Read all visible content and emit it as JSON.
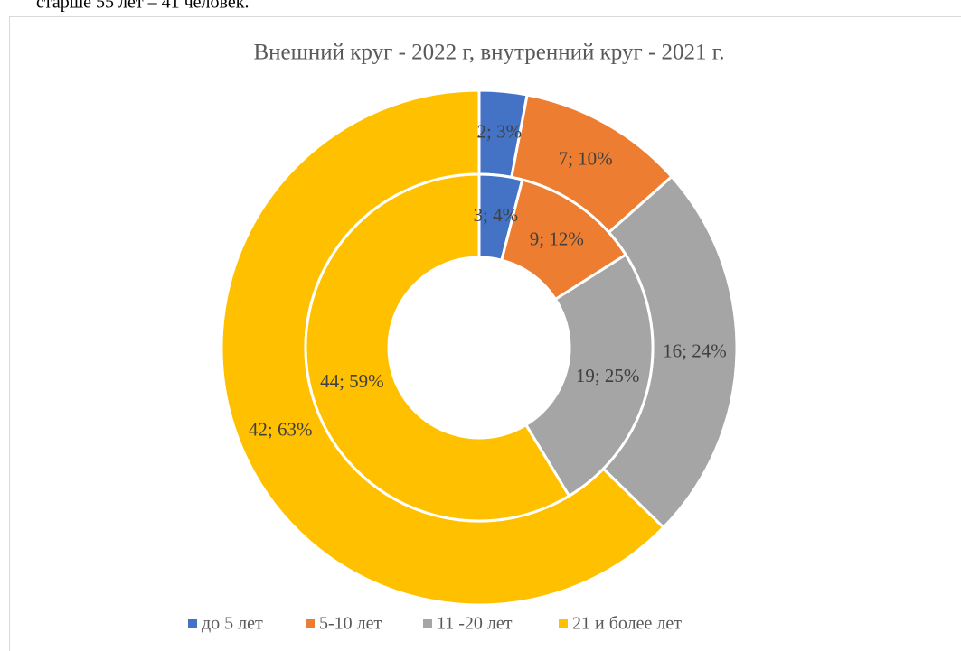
{
  "page_text": "старше 55 лет – 41 человек.",
  "chart_data": {
    "type": "doughnut",
    "title": "Внешний круг - 2022 г, внутренний круг - 2021 г.",
    "categories": [
      "до 5 лет",
      "5-10 лет",
      "11 -20 лет",
      "21 и более лет"
    ],
    "colors": [
      "#4472c4",
      "#ed7d31",
      "#a5a5a5",
      "#ffc000"
    ],
    "series": [
      {
        "values": [
          2,
          7,
          16,
          42
        ],
        "value_labels": [
          "2; 3%",
          "7; 10%",
          "16; 24%",
          "42; 63%"
        ]
      },
      {
        "values": [
          3,
          9,
          19,
          44
        ],
        "value_labels": [
          "3; 4%",
          "9; 12%",
          "19; 25%",
          "44; 59%"
        ]
      }
    ],
    "legend": "bottom"
  }
}
